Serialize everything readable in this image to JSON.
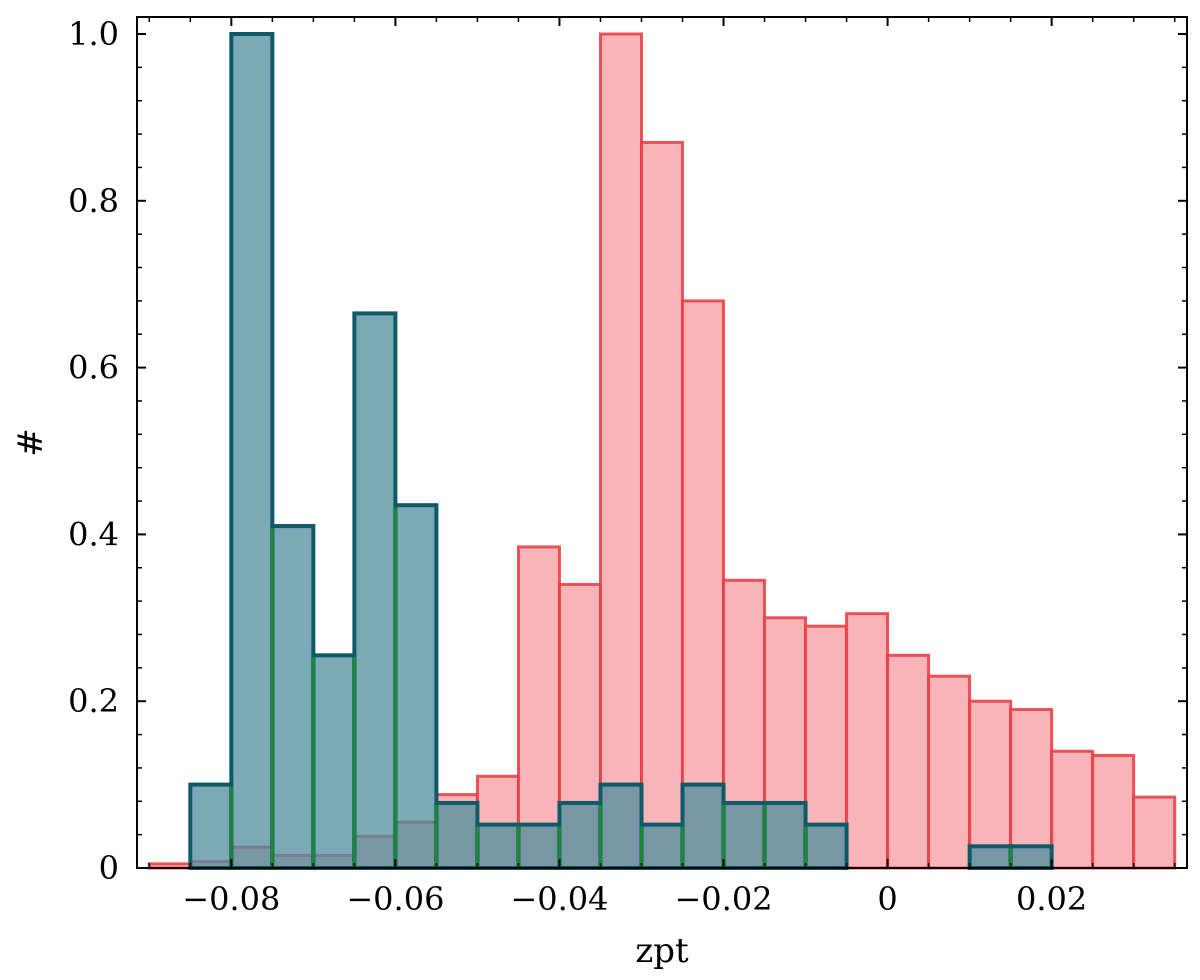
{
  "chart_data": {
    "type": "bar",
    "xlabel": "zpt",
    "ylabel": "#",
    "xlim": [
      -0.0915,
      0.0365
    ],
    "ylim": [
      0,
      1.0
    ],
    "bin_width": 0.005,
    "x_ticks": [
      {
        "value": -0.08,
        "label": "−0.08"
      },
      {
        "value": -0.06,
        "label": "−0.06"
      },
      {
        "value": -0.04,
        "label": "−0.04"
      },
      {
        "value": -0.02,
        "label": "−0.02"
      },
      {
        "value": 0.0,
        "label": "0"
      },
      {
        "value": 0.02,
        "label": "0.02"
      }
    ],
    "y_ticks": [
      {
        "value": 0.0,
        "label": "0"
      },
      {
        "value": 0.2,
        "label": "0.2"
      },
      {
        "value": 0.4,
        "label": "0.4"
      },
      {
        "value": 0.6,
        "label": "0.6"
      },
      {
        "value": 0.8,
        "label": "0.8"
      },
      {
        "value": 1.0,
        "label": "1.0"
      }
    ],
    "grid": false,
    "series": [
      {
        "fill": "#f8b4b6",
        "edge": "#e8393f",
        "bin_starts": [
          -0.09,
          -0.085,
          -0.08,
          -0.075,
          -0.07,
          -0.065,
          -0.06,
          -0.055,
          -0.05,
          -0.045,
          -0.04,
          -0.035,
          -0.03,
          -0.025,
          -0.02,
          -0.015,
          -0.01,
          -0.005,
          0.0,
          0.005,
          0.01,
          0.015,
          0.02,
          0.025,
          0.03
        ],
        "values": [
          0.005,
          0.008,
          0.025,
          0.015,
          0.015,
          0.038,
          0.055,
          0.088,
          0.11,
          0.385,
          0.34,
          1.0,
          0.87,
          0.68,
          0.345,
          0.3,
          0.29,
          0.305,
          0.255,
          0.23,
          0.2,
          0.19,
          0.14,
          0.135,
          0.085
        ]
      },
      {
        "fill": "#4f8c9e",
        "fill_opacity": 0.75,
        "edge": "#0e5a68",
        "inner_edge": "#1a8a2e",
        "bin_starts": [
          -0.085,
          -0.08,
          -0.075,
          -0.07,
          -0.065,
          -0.06,
          -0.055,
          -0.05,
          -0.045,
          -0.04,
          -0.035,
          -0.03,
          -0.025,
          -0.02,
          -0.015,
          -0.01,
          -0.005,
          0.0,
          0.005,
          0.01,
          0.015
        ],
        "values": [
          0.1,
          1.0,
          0.41,
          0.255,
          0.665,
          0.435,
          0.078,
          0.052,
          0.052,
          0.078,
          0.1,
          0.052,
          0.1,
          0.078,
          0.078,
          0.052,
          0.0,
          0.0,
          0.0,
          0.026,
          0.026
        ]
      }
    ]
  }
}
